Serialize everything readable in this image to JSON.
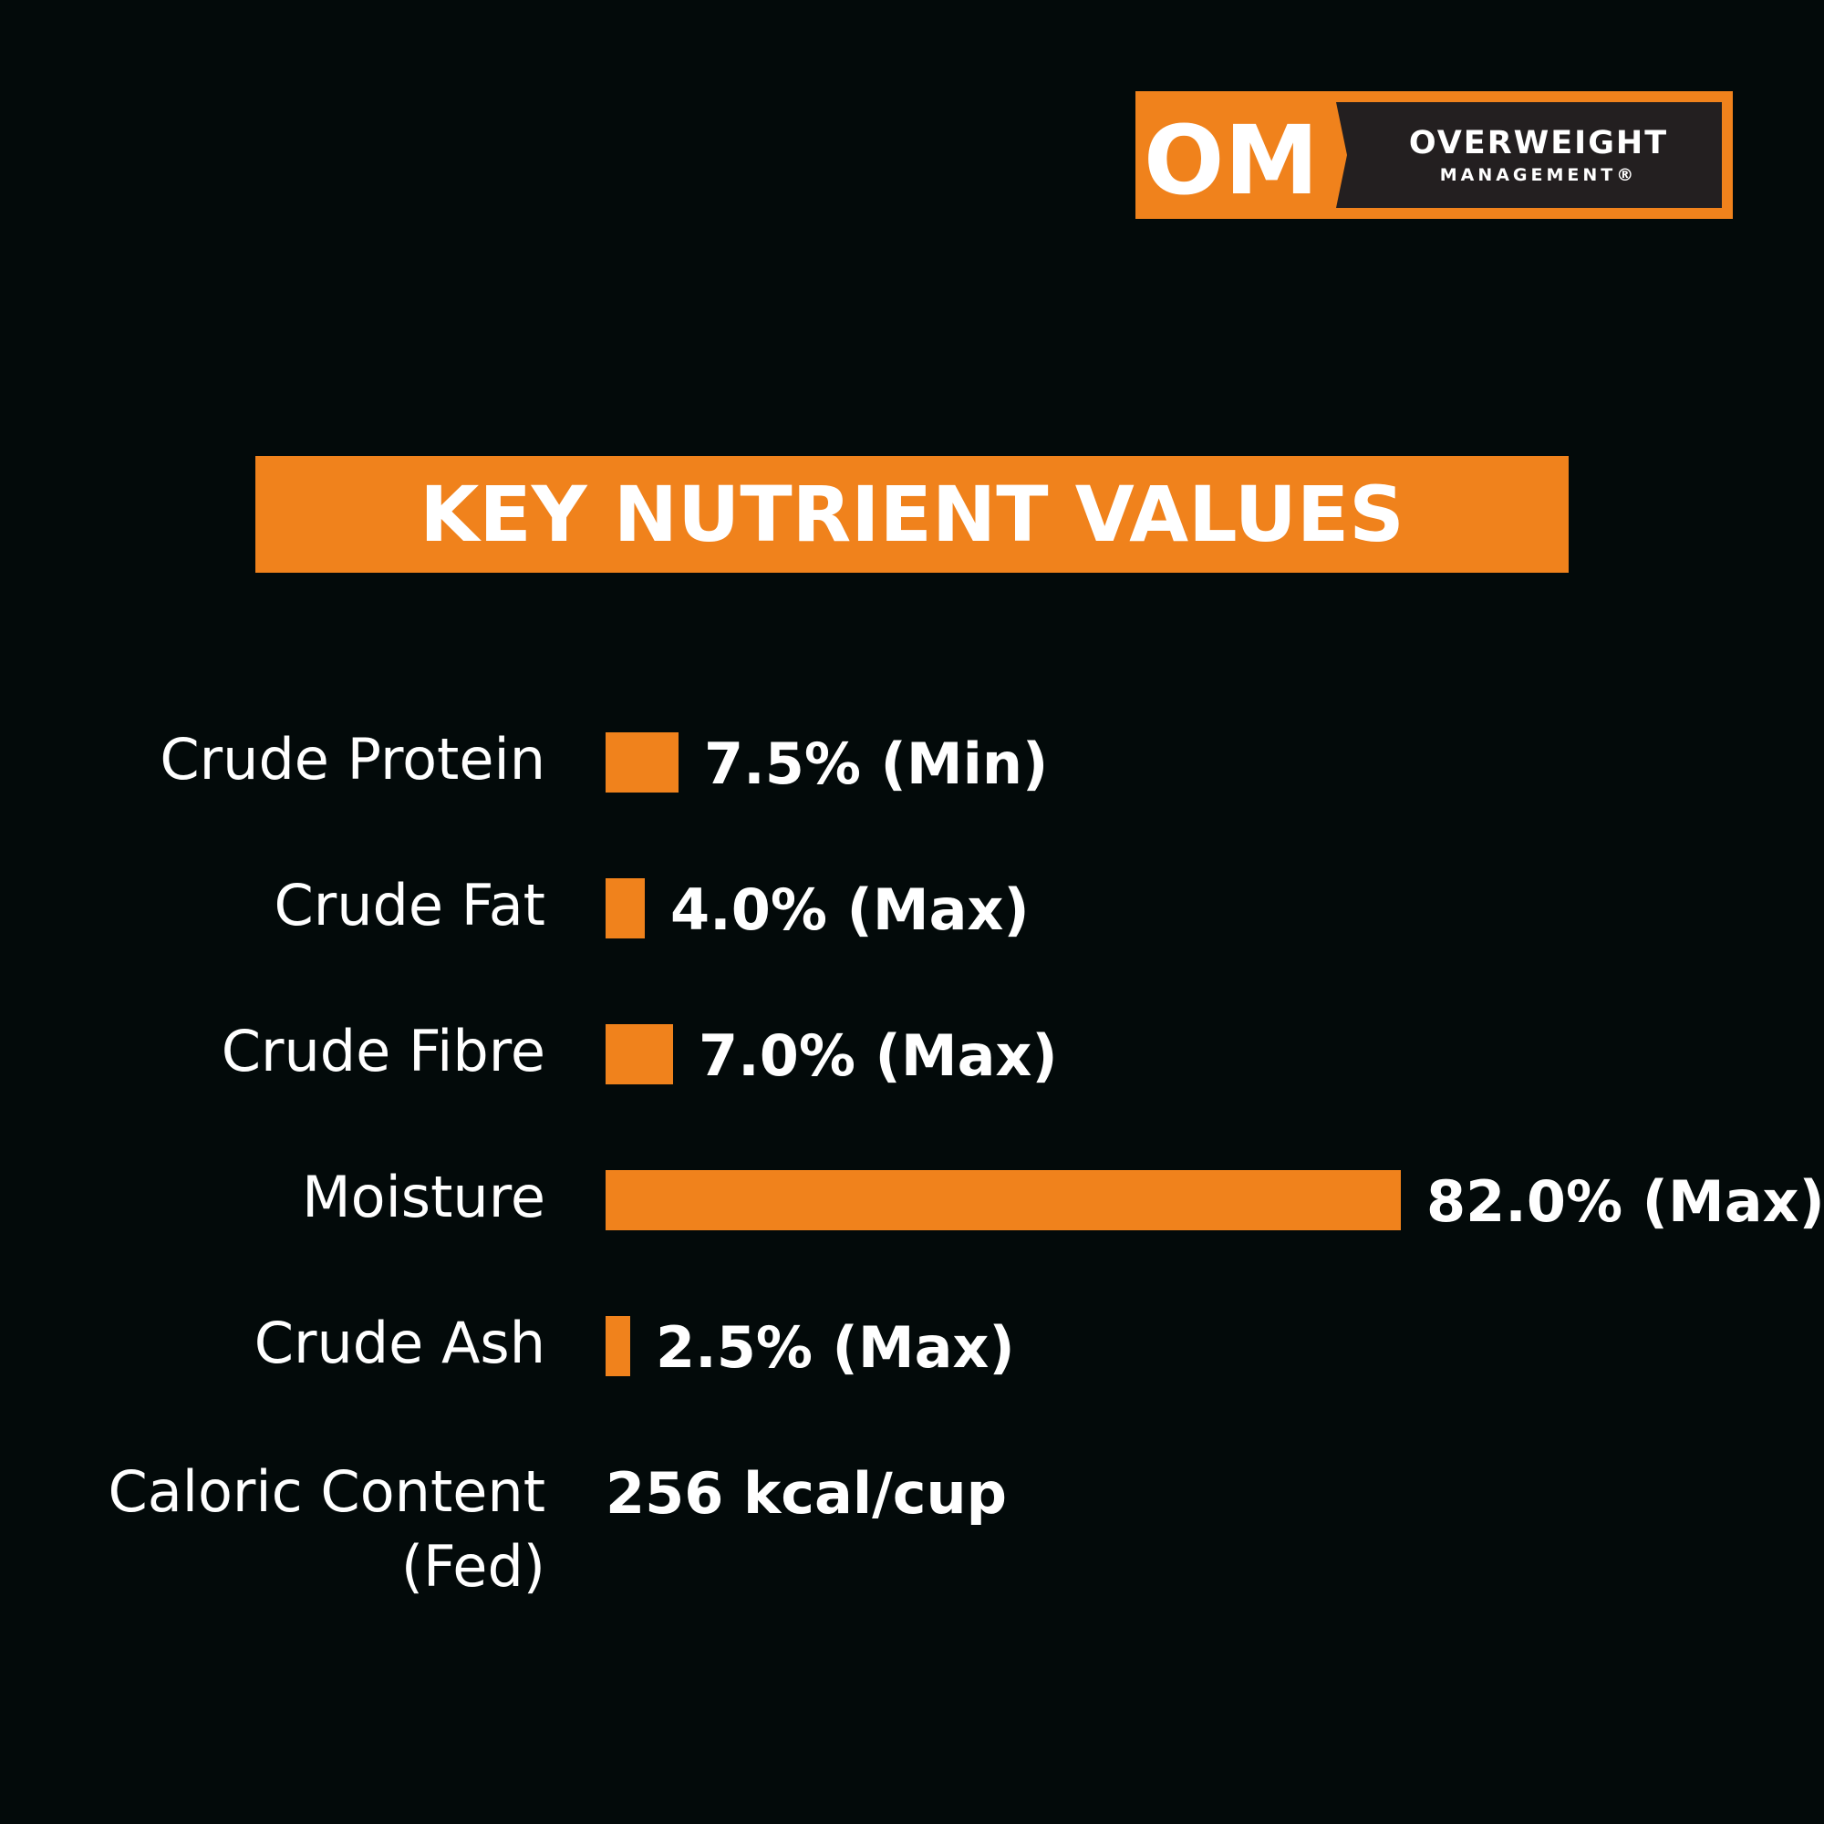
{
  "logo": {
    "badge_text": "OM",
    "line1": "OVERWEIGHT",
    "line2": "MANAGEMENT®"
  },
  "colors": {
    "background": "#030a0a",
    "accent": "#f0821c",
    "text": "#ffffff"
  },
  "chart_data": {
    "type": "bar",
    "orientation": "horizontal",
    "title": "KEY NUTRIENT VALUES",
    "categories": [
      "Crude Protein",
      "Crude Fat",
      "Crude Fibre",
      "Moisture",
      "Crude Ash"
    ],
    "values": [
      7.5,
      4.0,
      7.0,
      82.0,
      2.5
    ],
    "value_labels": [
      "7.5% (Min)",
      "4.0% (Max)",
      "7.0% (Max)",
      "82.0% (Max)",
      "2.5% (Max)"
    ],
    "unit": "%",
    "xlim": [
      0,
      82.0
    ],
    "grid": false,
    "legend": "none"
  },
  "caloric": {
    "label_line1": "Caloric Content",
    "label_line2": "(Fed)",
    "value": "256 kcal/cup"
  }
}
